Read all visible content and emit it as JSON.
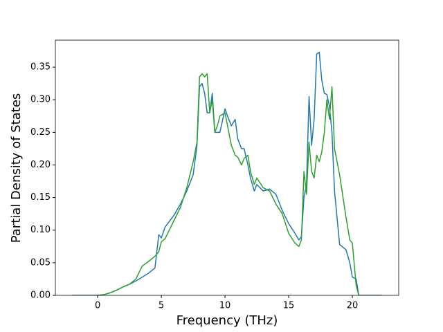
{
  "chart_data": {
    "type": "line",
    "xlabel": "Frequency (THz)",
    "ylabel": "Partial Density of States",
    "x": [
      -2,
      0,
      0.5,
      1,
      1.5,
      2,
      2.5,
      3,
      3.5,
      4,
      4.5,
      4.8,
      5,
      5.3,
      5.5,
      6,
      6.5,
      7,
      7.5,
      7.8,
      8,
      8.2,
      8.4,
      8.6,
      8.8,
      9,
      9.2,
      9.4,
      9.6,
      10,
      10.2,
      10.5,
      10.8,
      11,
      11.3,
      11.5,
      11.8,
      12,
      12.3,
      12.5,
      13,
      13.5,
      14,
      14.5,
      15,
      15.5,
      15.8,
      16,
      16.2,
      16.4,
      16.6,
      16.8,
      17,
      17.2,
      17.4,
      17.6,
      17.8,
      18,
      18.2,
      18.4,
      18.6,
      19,
      19.5,
      19.8,
      20,
      20.3,
      20.5,
      22.3
    ],
    "series": [
      {
        "color": "#1f77b4",
        "values": [
          0,
          0,
          0.001,
          0.004,
          0.008,
          0.013,
          0.017,
          0.022,
          0.028,
          0.034,
          0.042,
          0.093,
          0.088,
          0.105,
          0.11,
          0.123,
          0.14,
          0.16,
          0.185,
          0.23,
          0.32,
          0.325,
          0.31,
          0.28,
          0.28,
          0.31,
          0.25,
          0.25,
          0.25,
          0.286,
          0.275,
          0.26,
          0.27,
          0.24,
          0.225,
          0.225,
          0.2,
          0.18,
          0.16,
          0.17,
          0.16,
          0.163,
          0.155,
          0.13,
          0.11,
          0.095,
          0.085,
          0.09,
          0.15,
          0.17,
          0.305,
          0.23,
          0.27,
          0.37,
          0.373,
          0.33,
          0.31,
          0.308,
          0.29,
          0.25,
          0.16,
          0.078,
          0.07,
          0.05,
          0.028,
          0.025,
          0,
          0
        ]
      },
      {
        "color": "#2ca02c",
        "values": [
          0,
          0,
          0.001,
          0.004,
          0.008,
          0.013,
          0.017,
          0.025,
          0.045,
          0.052,
          0.06,
          0.067,
          0.082,
          0.087,
          0.095,
          0.115,
          0.135,
          0.165,
          0.205,
          0.235,
          0.335,
          0.34,
          0.335,
          0.34,
          0.28,
          0.3,
          0.25,
          0.26,
          0.275,
          0.28,
          0.26,
          0.23,
          0.215,
          0.212,
          0.2,
          0.21,
          0.215,
          0.19,
          0.17,
          0.18,
          0.165,
          0.16,
          0.14,
          0.125,
          0.095,
          0.08,
          0.075,
          0.085,
          0.19,
          0.155,
          0.235,
          0.19,
          0.18,
          0.215,
          0.205,
          0.22,
          0.25,
          0.3,
          0.27,
          0.32,
          0.225,
          0.185,
          0.12,
          0.085,
          0.08,
          0.015,
          0,
          0
        ]
      }
    ],
    "xlim": [
      -3.32,
      23.64
    ],
    "xticks": [
      0,
      5,
      10,
      15,
      20
    ],
    "ylim": [
      0,
      0.3915
    ],
    "yticks": [
      {
        "value": 0,
        "label": "0.00"
      },
      0.05,
      {
        "value": 0.1,
        "label": "0.10"
      },
      0.15,
      {
        "value": 0.2,
        "label": "0.20"
      },
      0.25,
      {
        "value": 0.3,
        "label": "0.30"
      },
      0.35
    ]
  }
}
